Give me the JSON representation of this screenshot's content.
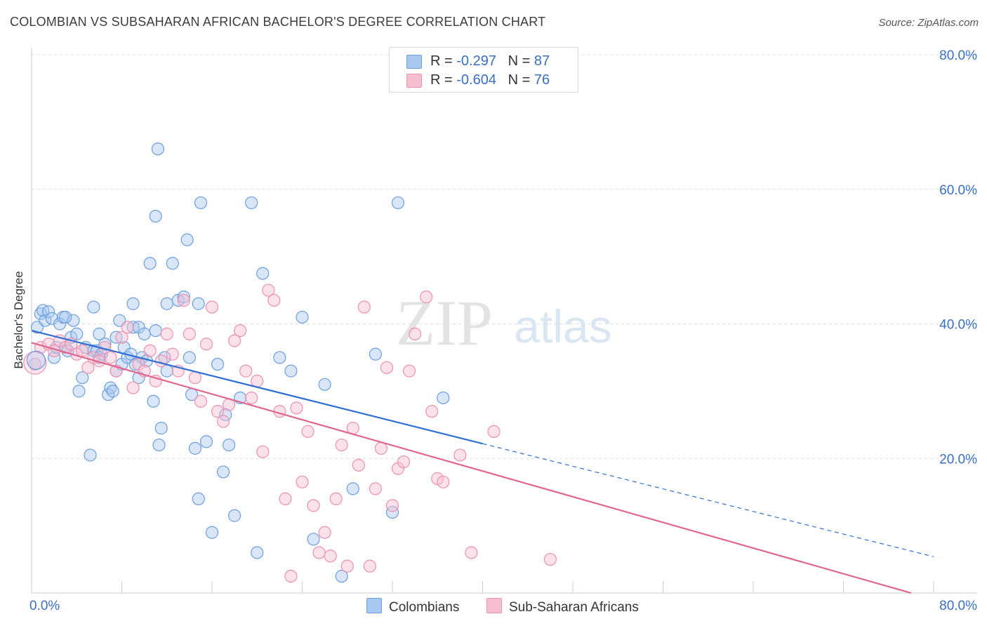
{
  "title": "COLOMBIAN VS SUBSAHARAN AFRICAN BACHELOR'S DEGREE CORRELATION CHART",
  "source": "Source: ZipAtlas.com",
  "watermark": {
    "zip": "ZIP",
    "atlas": "atlas"
  },
  "colors": {
    "blue_fill": "#a9c8f0",
    "blue_stroke": "#6d9ee0",
    "blue_line": "#2f6fd1",
    "pink_fill": "#f7bfd0",
    "pink_stroke": "#ee8fb0",
    "pink_line": "#e0668f",
    "axis_text": "#3a6fc4",
    "grid": "#dddddd"
  },
  "legend": {
    "rows": [
      {
        "r_label": "R = ",
        "r_value": "-0.297",
        "n_label": "N = ",
        "n_value": "87",
        "color": "#a9c8f0"
      },
      {
        "r_label": "R = ",
        "r_value": "-0.604",
        "n_label": "N = ",
        "n_value": "76",
        "color": "#f7bfd0"
      }
    ]
  },
  "bottom_legend": {
    "series1": "Colombians",
    "series2": "Sub-Saharan Africans"
  },
  "chart_data": {
    "type": "scatter",
    "title": "COLOMBIAN VS SUBSAHARAN AFRICAN BACHELOR'S DEGREE CORRELATION CHART",
    "xlabel": "",
    "ylabel": "Bachelor's Degree",
    "xlim": [
      0,
      80
    ],
    "ylim": [
      0,
      80
    ],
    "x_tick_labels": [
      "0.0%",
      "80.0%"
    ],
    "y_tick_labels": [
      "20.0%",
      "40.0%",
      "60.0%",
      "80.0%"
    ],
    "y_ticks": [
      20,
      40,
      60,
      80
    ],
    "grid": true,
    "series": [
      {
        "name": "Colombians",
        "R": -0.297,
        "N": 87,
        "trend": {
          "x0": 0,
          "y0": 39.0,
          "x1": 40,
          "y1": 22.2,
          "dash_to_x": 80,
          "dash_to_y": 5.4
        },
        "points": [
          [
            0.5,
            39.5
          ],
          [
            0.8,
            41.5
          ],
          [
            1.0,
            42.0
          ],
          [
            1.2,
            40.5
          ],
          [
            1.5,
            41.8
          ],
          [
            1.8,
            40.8
          ],
          [
            2.0,
            35.0
          ],
          [
            2.2,
            36.5
          ],
          [
            2.5,
            40.0
          ],
          [
            2.8,
            41.0
          ],
          [
            3.0,
            36.5
          ],
          [
            3.2,
            36.0
          ],
          [
            3.5,
            38.0
          ],
          [
            3.7,
            40.5
          ],
          [
            4.0,
            38.5
          ],
          [
            4.2,
            30.0
          ],
          [
            4.5,
            32.0
          ],
          [
            4.8,
            36.5
          ],
          [
            5.2,
            20.5
          ],
          [
            5.5,
            36.0
          ],
          [
            5.5,
            42.5
          ],
          [
            5.8,
            36.0
          ],
          [
            6.0,
            35.0
          ],
          [
            6.2,
            35.5
          ],
          [
            6.5,
            37.0
          ],
          [
            6.8,
            29.5
          ],
          [
            7.0,
            30.5
          ],
          [
            7.2,
            30.0
          ],
          [
            7.5,
            33.0
          ],
          [
            7.5,
            38.0
          ],
          [
            7.8,
            40.5
          ],
          [
            8.0,
            34.0
          ],
          [
            8.2,
            36.5
          ],
          [
            8.5,
            35.0
          ],
          [
            8.8,
            35.5
          ],
          [
            9.0,
            39.5
          ],
          [
            9.0,
            43.0
          ],
          [
            9.2,
            34.0
          ],
          [
            9.5,
            39.5
          ],
          [
            9.8,
            35.0
          ],
          [
            10.0,
            38.5
          ],
          [
            10.2,
            34.5
          ],
          [
            10.5,
            49.0
          ],
          [
            10.8,
            28.5
          ],
          [
            11.0,
            39.0
          ],
          [
            11.0,
            56.0
          ],
          [
            11.3,
            22.0
          ],
          [
            11.5,
            24.5
          ],
          [
            11.8,
            35.0
          ],
          [
            12.0,
            33.0
          ],
          [
            12.5,
            49.0
          ],
          [
            13.0,
            43.5
          ],
          [
            13.5,
            44.0
          ],
          [
            13.8,
            52.5
          ],
          [
            14.0,
            35.0
          ],
          [
            14.2,
            29.5
          ],
          [
            14.5,
            21.5
          ],
          [
            14.8,
            14.0
          ],
          [
            14.8,
            43.0
          ],
          [
            15.0,
            58.0
          ],
          [
            15.5,
            22.5
          ],
          [
            16.0,
            9.0
          ],
          [
            16.5,
            34.0
          ],
          [
            17.0,
            18.0
          ],
          [
            17.2,
            26.5
          ],
          [
            17.5,
            22.0
          ],
          [
            18.0,
            11.5
          ],
          [
            19.5,
            58.0
          ],
          [
            20.0,
            6.0
          ],
          [
            20.5,
            47.5
          ],
          [
            22.0,
            35.0
          ],
          [
            23.0,
            33.0
          ],
          [
            24.0,
            41.0
          ],
          [
            25.0,
            8.0
          ],
          [
            27.5,
            2.5
          ],
          [
            28.5,
            15.5
          ],
          [
            30.5,
            35.5
          ],
          [
            32.0,
            12.0
          ],
          [
            32.5,
            58.0
          ],
          [
            36.5,
            29.0
          ],
          [
            11.2,
            66.0
          ],
          [
            26.0,
            31.0
          ],
          [
            18.5,
            29.0
          ],
          [
            9.5,
            32.0
          ],
          [
            12.0,
            43.0
          ],
          [
            6.0,
            38.5
          ],
          [
            3.0,
            41.0
          ]
        ]
      },
      {
        "name": "Sub-Saharan Africans",
        "R": -0.604,
        "N": 76,
        "trend": {
          "x0": 0,
          "y0": 37.2,
          "x1": 78,
          "y1": 0
        },
        "points": [
          [
            0.3,
            34.0
          ],
          [
            0.8,
            36.5
          ],
          [
            1.5,
            37.0
          ],
          [
            2.0,
            36.0
          ],
          [
            2.5,
            37.5
          ],
          [
            3.0,
            36.5
          ],
          [
            3.5,
            37.0
          ],
          [
            4.0,
            35.5
          ],
          [
            4.5,
            36.0
          ],
          [
            5.0,
            33.5
          ],
          [
            5.5,
            35.0
          ],
          [
            6.0,
            34.5
          ],
          [
            6.5,
            36.5
          ],
          [
            7.0,
            35.0
          ],
          [
            7.5,
            33.0
          ],
          [
            8.0,
            38.0
          ],
          [
            8.5,
            39.5
          ],
          [
            9.0,
            30.5
          ],
          [
            9.5,
            34.0
          ],
          [
            10.0,
            33.0
          ],
          [
            10.5,
            36.0
          ],
          [
            11.0,
            31.5
          ],
          [
            11.5,
            34.5
          ],
          [
            12.0,
            38.5
          ],
          [
            12.5,
            35.5
          ],
          [
            13.0,
            33.0
          ],
          [
            13.5,
            43.5
          ],
          [
            14.0,
            38.5
          ],
          [
            14.5,
            32.0
          ],
          [
            15.0,
            28.5
          ],
          [
            15.5,
            37.0
          ],
          [
            16.0,
            42.5
          ],
          [
            16.5,
            27.0
          ],
          [
            17.0,
            25.5
          ],
          [
            17.5,
            28.0
          ],
          [
            18.0,
            37.5
          ],
          [
            18.5,
            39.0
          ],
          [
            19.0,
            33.0
          ],
          [
            19.5,
            29.0
          ],
          [
            20.0,
            31.5
          ],
          [
            20.5,
            21.0
          ],
          [
            21.0,
            45.0
          ],
          [
            21.5,
            43.5
          ],
          [
            22.0,
            27.0
          ],
          [
            22.5,
            14.0
          ],
          [
            23.0,
            2.5
          ],
          [
            23.5,
            27.5
          ],
          [
            24.0,
            16.5
          ],
          [
            24.5,
            24.0
          ],
          [
            25.0,
            13.0
          ],
          [
            25.5,
            6.0
          ],
          [
            26.0,
            9.0
          ],
          [
            26.5,
            5.5
          ],
          [
            27.0,
            14.0
          ],
          [
            27.5,
            22.0
          ],
          [
            28.0,
            4.0
          ],
          [
            28.5,
            24.5
          ],
          [
            29.0,
            19.0
          ],
          [
            29.5,
            42.5
          ],
          [
            30.0,
            4.0
          ],
          [
            30.5,
            15.5
          ],
          [
            31.0,
            21.5
          ],
          [
            31.5,
            33.5
          ],
          [
            32.0,
            13.0
          ],
          [
            32.5,
            18.5
          ],
          [
            33.0,
            19.5
          ],
          [
            33.5,
            33.0
          ],
          [
            34.0,
            38.5
          ],
          [
            35.0,
            44.0
          ],
          [
            35.5,
            27.0
          ],
          [
            36.0,
            17.0
          ],
          [
            36.5,
            16.5
          ],
          [
            38.0,
            20.5
          ],
          [
            39.0,
            6.0
          ],
          [
            41.0,
            24.0
          ],
          [
            46.0,
            5.0
          ]
        ]
      }
    ]
  }
}
